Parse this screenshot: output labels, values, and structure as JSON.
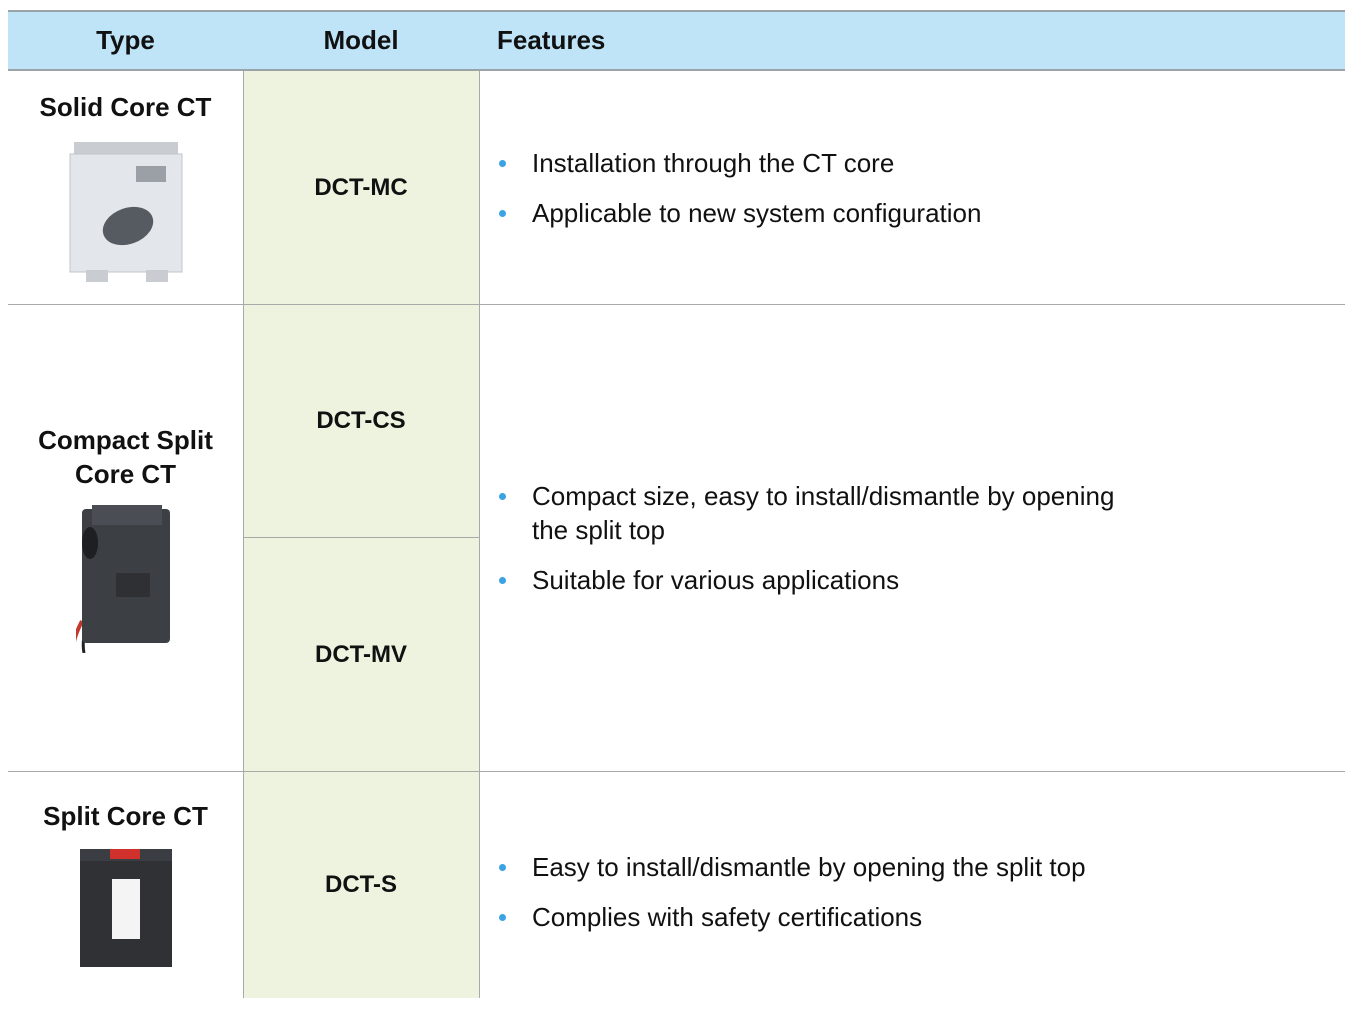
{
  "table": {
    "header": [
      "Type",
      "Model",
      "Features"
    ],
    "rows": [
      {
        "type": "Solid Core CT",
        "models": [
          "DCT-MC"
        ],
        "features": [
          "Installation through the CT core",
          "Applicable to new system configuration"
        ]
      },
      {
        "type": "Compact Split Core CT",
        "models": [
          "DCT-CS",
          "DCT-MV"
        ],
        "features": [
          "Compact size, easy to install/dismantle by opening the split top",
          "Suitable for various applications"
        ]
      },
      {
        "type": "Split Core CT",
        "models": [
          "DCT-S"
        ],
        "features": [
          "Easy to install/dismantle by opening the split top",
          "Complies with safety certifications"
        ]
      }
    ]
  }
}
